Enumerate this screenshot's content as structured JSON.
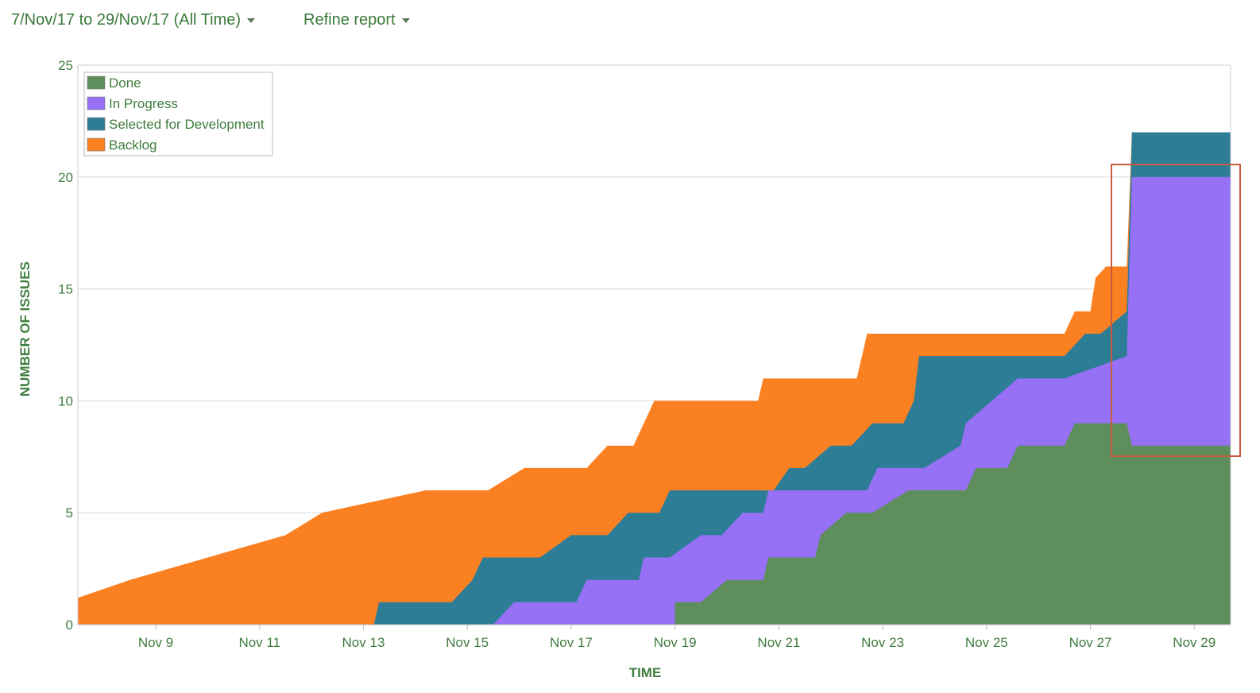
{
  "toolbar": {
    "date_range_label": "7/Nov/17 to 29/Nov/17 (All Time)",
    "refine_label": "Refine report"
  },
  "colors": {
    "done": "#5d8e5b",
    "in_progress": "#9670f5",
    "selected": "#2e7d97",
    "backlog": "#fb8022",
    "highlight": "#c9593f",
    "grid": "#d8d8d8",
    "text": "#3f7d3f"
  },
  "chart_data": {
    "type": "area",
    "stacked": true,
    "xlabel": "TIME",
    "ylabel": "NUMBER OF ISSUES",
    "xlim": [
      7.5,
      29.7
    ],
    "ylim": [
      0,
      25
    ],
    "y_ticks": [
      0,
      5,
      10,
      15,
      20,
      25
    ],
    "x_ticks": [
      {
        "x": 9,
        "label": "Nov 9"
      },
      {
        "x": 11,
        "label": "Nov 11"
      },
      {
        "x": 13,
        "label": "Nov 13"
      },
      {
        "x": 15,
        "label": "Nov 15"
      },
      {
        "x": 17,
        "label": "Nov 17"
      },
      {
        "x": 19,
        "label": "Nov 19"
      },
      {
        "x": 21,
        "label": "Nov 21"
      },
      {
        "x": 23,
        "label": "Nov 23"
      },
      {
        "x": 25,
        "label": "Nov 25"
      },
      {
        "x": 27,
        "label": "Nov 27"
      },
      {
        "x": 29,
        "label": "Nov 29"
      }
    ],
    "grid": true,
    "legend_position": "top-left",
    "series": [
      {
        "name": "Done",
        "key": "done",
        "points": [
          [
            7.5,
            0
          ],
          [
            19,
            0
          ],
          [
            19,
            1
          ],
          [
            19.5,
            1
          ],
          [
            20,
            2
          ],
          [
            20.7,
            2
          ],
          [
            20.8,
            3
          ],
          [
            21.7,
            3
          ],
          [
            21.8,
            4
          ],
          [
            22.3,
            5
          ],
          [
            22.8,
            5
          ],
          [
            23.5,
            6
          ],
          [
            24.6,
            6
          ],
          [
            24.8,
            7
          ],
          [
            25.4,
            7
          ],
          [
            25.6,
            8
          ],
          [
            26.5,
            8
          ],
          [
            26.7,
            9
          ],
          [
            27.7,
            9
          ],
          [
            27.8,
            8
          ],
          [
            29.7,
            8
          ]
        ]
      },
      {
        "name": "In Progress",
        "key": "in_progress",
        "points": [
          [
            7.5,
            0
          ],
          [
            15.5,
            0
          ],
          [
            15.9,
            1
          ],
          [
            17.1,
            1
          ],
          [
            17.3,
            2
          ],
          [
            18.3,
            2
          ],
          [
            18.4,
            3
          ],
          [
            18.9,
            3
          ],
          [
            19.5,
            4
          ],
          [
            19.9,
            4
          ],
          [
            20.3,
            5
          ],
          [
            20.7,
            5
          ],
          [
            20.8,
            6
          ],
          [
            22.7,
            6
          ],
          [
            22.9,
            7
          ],
          [
            23.8,
            7
          ],
          [
            24.5,
            8
          ],
          [
            24.6,
            9
          ],
          [
            25.1,
            10
          ],
          [
            25.6,
            11
          ],
          [
            26.5,
            11
          ],
          [
            27.7,
            12
          ],
          [
            27.8,
            20
          ],
          [
            29.7,
            20
          ]
        ]
      },
      {
        "name": "Selected for Development",
        "key": "selected",
        "points": [
          [
            7.5,
            0
          ],
          [
            13.2,
            0
          ],
          [
            13.3,
            1
          ],
          [
            14.7,
            1
          ],
          [
            15.1,
            2
          ],
          [
            15.3,
            3
          ],
          [
            16.4,
            3
          ],
          [
            17.0,
            4
          ],
          [
            17.7,
            4
          ],
          [
            18.1,
            5
          ],
          [
            18.7,
            5
          ],
          [
            18.9,
            6
          ],
          [
            20.9,
            6
          ],
          [
            21.2,
            7
          ],
          [
            21.5,
            7
          ],
          [
            22.0,
            8
          ],
          [
            22.4,
            8
          ],
          [
            22.8,
            9
          ],
          [
            23.4,
            9
          ],
          [
            23.6,
            10
          ],
          [
            23.7,
            12
          ],
          [
            26.5,
            12
          ],
          [
            26.9,
            13
          ],
          [
            27.2,
            13
          ],
          [
            27.7,
            14
          ],
          [
            27.8,
            22
          ],
          [
            29.7,
            22
          ]
        ]
      },
      {
        "name": "Backlog",
        "key": "backlog",
        "points": [
          [
            7.5,
            1.2
          ],
          [
            8.5,
            2
          ],
          [
            10,
            3
          ],
          [
            11.5,
            4
          ],
          [
            12.2,
            5
          ],
          [
            14.2,
            6
          ],
          [
            15.4,
            6
          ],
          [
            16.1,
            7
          ],
          [
            17.3,
            7
          ],
          [
            17.7,
            8
          ],
          [
            18.2,
            8
          ],
          [
            18.6,
            10
          ],
          [
            20.6,
            10
          ],
          [
            20.7,
            11
          ],
          [
            22.5,
            11
          ],
          [
            22.7,
            13
          ],
          [
            26.5,
            13
          ],
          [
            26.7,
            14
          ],
          [
            27.0,
            14
          ],
          [
            27.1,
            15.5
          ],
          [
            27.3,
            16
          ],
          [
            27.7,
            16
          ],
          [
            27.8,
            22
          ],
          [
            29.7,
            22
          ]
        ]
      }
    ]
  }
}
